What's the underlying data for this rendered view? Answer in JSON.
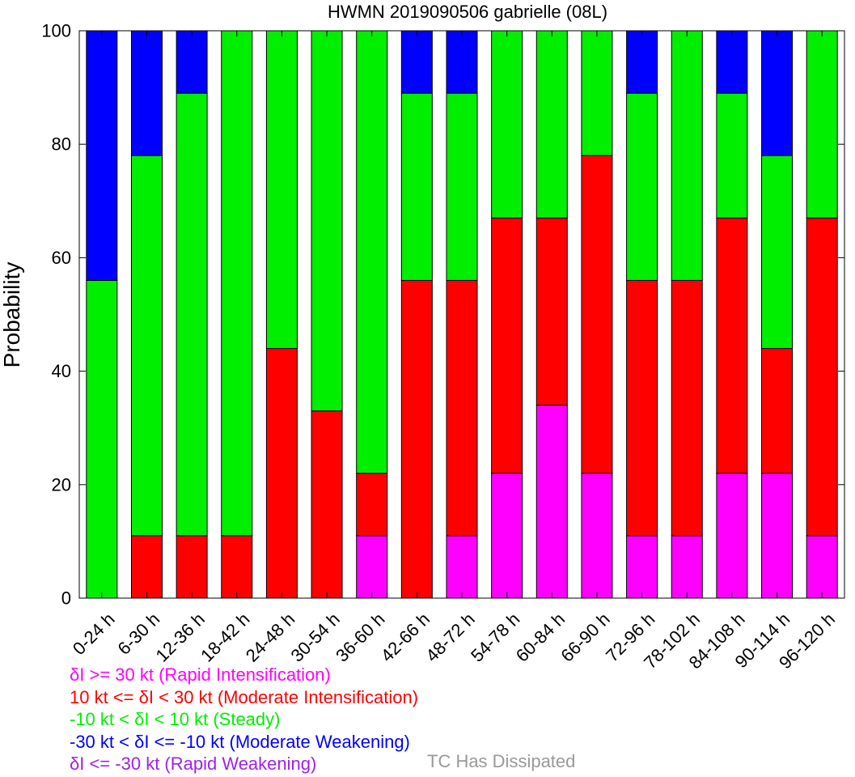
{
  "chart_data": {
    "type": "bar",
    "stacked": true,
    "title": "HWMN 2019090506 gabrielle (08L)",
    "ylabel": "Probability",
    "ylim": [
      0,
      100
    ],
    "yticks": [
      "0",
      "20",
      "40",
      "60",
      "80",
      "100"
    ],
    "categories": [
      "0-24 h",
      "6-30 h",
      "12-36 h",
      "18-42 h",
      "24-48 h",
      "30-54 h",
      "36-60 h",
      "42-66 h",
      "48-72 h",
      "54-78 h",
      "60-84 h",
      "66-90 h",
      "72-96 h",
      "78-102 h",
      "84-108 h",
      "90-114 h",
      "96-120 h"
    ],
    "series": [
      {
        "name": "δI >= 30 kt (Rapid Intensification)",
        "color": "#ff00ff",
        "values": [
          0,
          0,
          0,
          0,
          0,
          0,
          11,
          0,
          11,
          22,
          34,
          22,
          11,
          11,
          22,
          22,
          11
        ]
      },
      {
        "name": "10 kt <= δI < 30 kt (Moderate Intensification)",
        "color": "#ff0000",
        "values": [
          0,
          11,
          11,
          11,
          44,
          33,
          11,
          56,
          45,
          45,
          33,
          56,
          45,
          45,
          45,
          22,
          56
        ]
      },
      {
        "name": "-10 kt < δI < 10 kt (Steady)",
        "color": "#00ee00",
        "values": [
          56,
          67,
          78,
          89,
          56,
          67,
          78,
          33,
          33,
          33,
          33,
          22,
          33,
          44,
          22,
          34,
          33
        ]
      },
      {
        "name": "-30 kt < δI <= -10 kt (Moderate Weakening)",
        "color": "#0000ff",
        "values": [
          44,
          22,
          11,
          0,
          0,
          0,
          0,
          11,
          11,
          0,
          0,
          0,
          11,
          0,
          11,
          22,
          0
        ]
      },
      {
        "name": "δI <= -30 kt (Rapid Weakening)",
        "color": "#a020f0",
        "values": [
          0,
          0,
          0,
          0,
          0,
          0,
          0,
          0,
          0,
          0,
          0,
          0,
          0,
          0,
          0,
          0,
          0
        ]
      }
    ],
    "extra_legend": {
      "label": "TC Has Dissipated",
      "color": "#999999"
    },
    "grid": false,
    "legend_placement": "bottom"
  }
}
